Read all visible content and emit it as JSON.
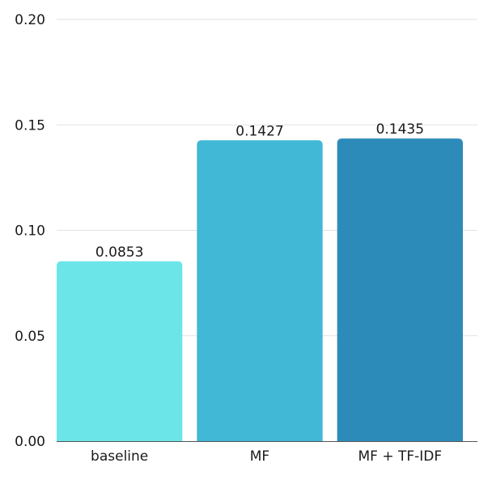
{
  "chart_data": {
    "type": "bar",
    "title": "",
    "xlabel": "",
    "ylabel": "",
    "categories": [
      "baseline",
      "MF",
      "MF + TF-IDF"
    ],
    "values": [
      0.0853,
      0.1427,
      0.1435
    ],
    "data_labels": [
      "0.0853",
      "0.1427",
      "0.1435"
    ],
    "colors": [
      "#6ce5e8",
      "#41b8d5",
      "#2d8bba"
    ],
    "ylim": [
      0,
      0.2
    ],
    "yticks": [
      0,
      0.05,
      0.1,
      0.15,
      0.2
    ],
    "ytick_labels": [
      "0.00",
      "0.05",
      "0.10",
      "0.15",
      "0.20"
    ],
    "grid": true,
    "legend": "none"
  }
}
